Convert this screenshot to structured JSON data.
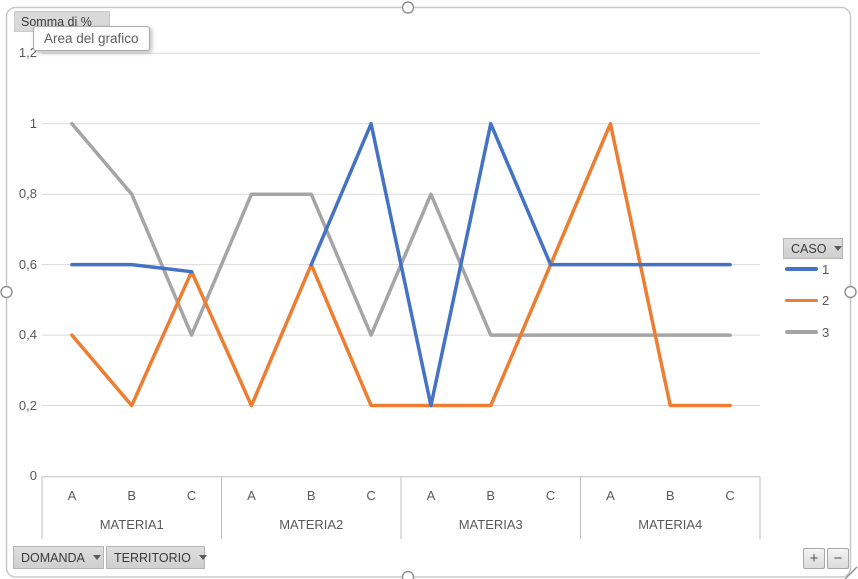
{
  "pivot_buttons": {
    "value_field": "Somma di %",
    "legend_field": "CASO",
    "axis_field_1": "DOMANDA",
    "axis_field_2": "TERRITORIO"
  },
  "tooltip_text": "Area del grafico",
  "zoom_controls": {
    "plus": "+",
    "minus": "−"
  },
  "colors": {
    "series_blue": "#4472C4",
    "series_orange": "#ED7D31",
    "series_gray": "#A5A5A5",
    "gridline": "#D9D9D9",
    "axis_line": "#BFBFBF",
    "axis_text": "#595959",
    "frame_border": "#C8C8C8",
    "handle_stroke": "#8F8F8F"
  },
  "chart_data": {
    "type": "line",
    "title": "",
    "xlabel": "",
    "ylabel": "",
    "ylim": [
      0,
      1.2
    ],
    "grid": true,
    "legend_position": "right",
    "y_ticks": [
      {
        "value": 0,
        "label": "0"
      },
      {
        "value": 0.2,
        "label": "0,2"
      },
      {
        "value": 0.4,
        "label": "0,4"
      },
      {
        "value": 0.6,
        "label": "0,6"
      },
      {
        "value": 0.8,
        "label": "0,8"
      },
      {
        "value": 1,
        "label": "1"
      },
      {
        "value": 1.2,
        "label": "1,2"
      }
    ],
    "groups": [
      {
        "label": "MATERIA1",
        "categories": [
          "A",
          "B",
          "C"
        ]
      },
      {
        "label": "MATERIA2",
        "categories": [
          "A",
          "B",
          "C"
        ]
      },
      {
        "label": "MATERIA3",
        "categories": [
          "A",
          "B",
          "C"
        ]
      },
      {
        "label": "MATERIA4",
        "categories": [
          "A",
          "B",
          "C"
        ]
      }
    ],
    "series": [
      {
        "name": "1",
        "color": "#4472C4",
        "values": [
          0.6,
          0.6,
          0.58,
          null,
          0.6,
          1,
          0.2,
          1,
          0.6,
          0.6,
          0.6,
          0.6
        ]
      },
      {
        "name": "2",
        "color": "#ED7D31",
        "values": [
          0.4,
          0.2,
          0.58,
          0.2,
          0.6,
          0.2,
          0.2,
          0.2,
          0.6,
          1,
          0.2,
          0.2
        ]
      },
      {
        "name": "3",
        "color": "#A5A5A5",
        "values": [
          1,
          0.8,
          0.4,
          0.8,
          0.8,
          0.4,
          0.8,
          0.4,
          0.4,
          0.4,
          0.4,
          0.4
        ]
      }
    ],
    "draw_order": [
      "3",
      "2",
      "1"
    ]
  }
}
